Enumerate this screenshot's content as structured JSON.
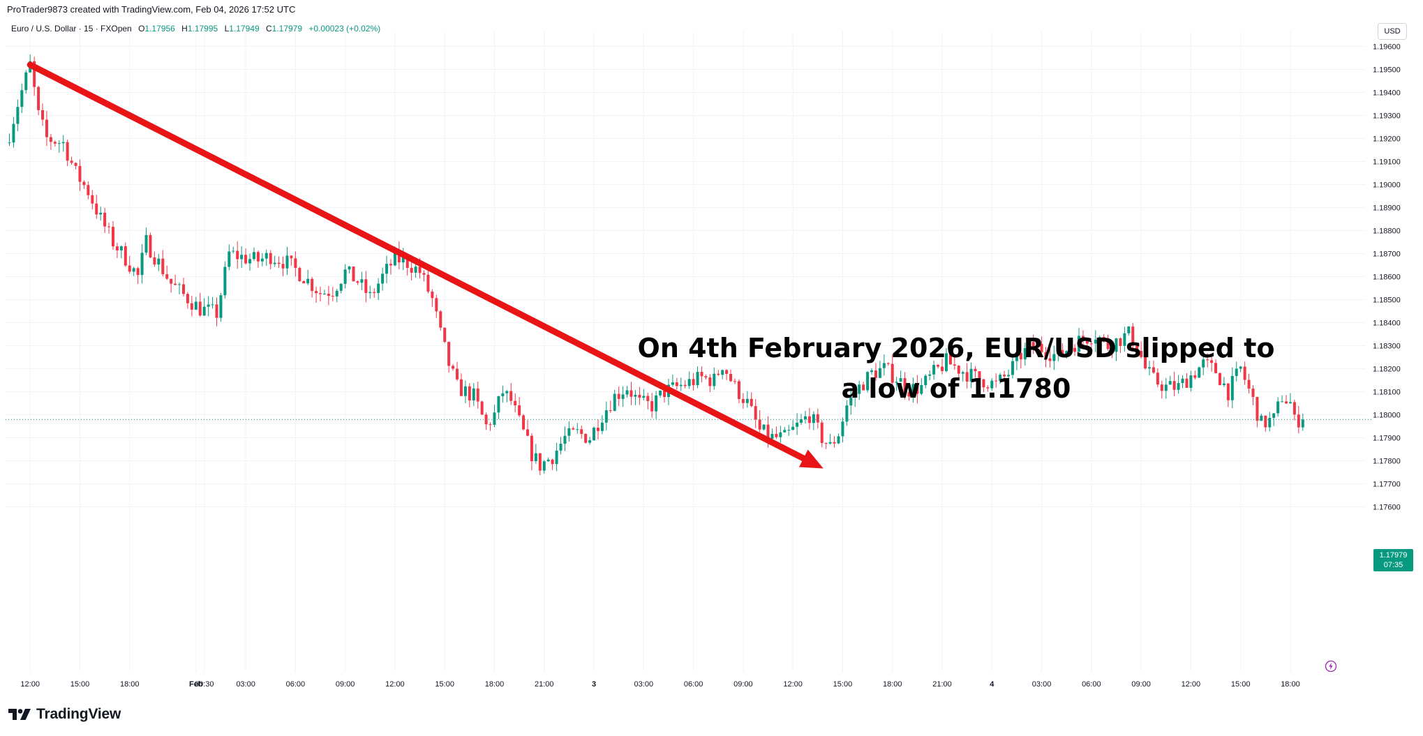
{
  "header": {
    "credit": "ProTrader9873 created with TradingView.com, Feb 04, 2026 17:52 UTC",
    "symbol": "Euro / U.S. Dollar · 15 · FXOpen",
    "ohlc": {
      "o_label": "O",
      "o": "1.17956",
      "h_label": "H",
      "h": "1.17995",
      "l_label": "L",
      "l": "1.17949",
      "c_label": "C",
      "c": "1.17979",
      "change": "+0.00023 (+0.02%)"
    },
    "currency": "USD"
  },
  "annotation": {
    "line1": "On 4th February 2026, EUR/USD slipped to",
    "line2": "a low of 1.1780"
  },
  "price_tag": {
    "price": "1.17979",
    "countdown": "07:35"
  },
  "logo": {
    "text": "TradingView"
  },
  "colors": {
    "up": "#089981",
    "down": "#f23645",
    "arrow": "#e81416",
    "grid": "#f0f3fa",
    "text": "#131722"
  },
  "chart_data": {
    "type": "candlestick",
    "title": "",
    "y_ticks": [
      1.176,
      1.177,
      1.178,
      1.179,
      1.18,
      1.181,
      1.182,
      1.183,
      1.184,
      1.185,
      1.186,
      1.187,
      1.188,
      1.189,
      1.19,
      1.191,
      1.192,
      1.193,
      1.194,
      1.195,
      1.196
    ],
    "y_tick_labels": [
      "1.17600",
      "1.17700",
      "1.17800",
      "1.17900",
      "1.18000",
      "1.18100",
      "1.18200",
      "1.18300",
      "1.18400",
      "1.18500",
      "1.18600",
      "1.18700",
      "1.18800",
      "1.18900",
      "1.19000",
      "1.19100",
      "1.19200",
      "1.19300",
      "1.19400",
      "1.19500",
      "1.19600"
    ],
    "ylim": [
      1.1755,
      1.1972
    ],
    "x_ticks": [
      {
        "label": "12:00",
        "bar": 5
      },
      {
        "label": "15:00",
        "bar": 17
      },
      {
        "label": "18:00",
        "bar": 29
      },
      {
        "label": "Feb",
        "bar": 45,
        "bold": true
      },
      {
        "label": "00:30",
        "bar": 47
      },
      {
        "label": "03:00",
        "bar": 57
      },
      {
        "label": "06:00",
        "bar": 69
      },
      {
        "label": "09:00",
        "bar": 81
      },
      {
        "label": "12:00",
        "bar": 93
      },
      {
        "label": "15:00",
        "bar": 105
      },
      {
        "label": "18:00",
        "bar": 117
      },
      {
        "label": "21:00",
        "bar": 129
      },
      {
        "label": "3",
        "bar": 141,
        "bold": true
      },
      {
        "label": "03:00",
        "bar": 153
      },
      {
        "label": "06:00",
        "bar": 165
      },
      {
        "label": "09:00",
        "bar": 177
      },
      {
        "label": "12:00",
        "bar": 189
      },
      {
        "label": "15:00",
        "bar": 201
      },
      {
        "label": "18:00",
        "bar": 213
      },
      {
        "label": "21:00",
        "bar": 225
      },
      {
        "label": "4",
        "bar": 237,
        "bold": true
      },
      {
        "label": "03:00",
        "bar": 249
      },
      {
        "label": "06:00",
        "bar": 261
      },
      {
        "label": "09:00",
        "bar": 273
      },
      {
        "label": "12:00",
        "bar": 285
      },
      {
        "label": "15:00",
        "bar": 297
      },
      {
        "label": "18:00",
        "bar": 309
      }
    ],
    "bars_total": 313,
    "last_price": 1.17979,
    "anchors": [
      {
        "bar": 0,
        "price": 1.1922
      },
      {
        "bar": 2,
        "price": 1.1935
      },
      {
        "bar": 5,
        "price": 1.1952
      },
      {
        "bar": 7,
        "price": 1.193
      },
      {
        "bar": 9,
        "price": 1.192
      },
      {
        "bar": 13,
        "price": 1.1918
      },
      {
        "bar": 16,
        "price": 1.1905
      },
      {
        "bar": 19,
        "price": 1.1897
      },
      {
        "bar": 22,
        "price": 1.1885
      },
      {
        "bar": 25,
        "price": 1.1875
      },
      {
        "bar": 28,
        "price": 1.1868
      },
      {
        "bar": 31,
        "price": 1.186
      },
      {
        "bar": 33,
        "price": 1.1875
      },
      {
        "bar": 36,
        "price": 1.1866
      },
      {
        "bar": 39,
        "price": 1.1857
      },
      {
        "bar": 42,
        "price": 1.1852
      },
      {
        "bar": 46,
        "price": 1.1846
      },
      {
        "bar": 50,
        "price": 1.1844
      },
      {
        "bar": 53,
        "price": 1.187
      },
      {
        "bar": 57,
        "price": 1.1868
      },
      {
        "bar": 60,
        "price": 1.1867
      },
      {
        "bar": 63,
        "price": 1.1869
      },
      {
        "bar": 67,
        "price": 1.1866
      },
      {
        "bar": 71,
        "price": 1.186
      },
      {
        "bar": 75,
        "price": 1.1853
      },
      {
        "bar": 78,
        "price": 1.1854
      },
      {
        "bar": 81,
        "price": 1.1862
      },
      {
        "bar": 84,
        "price": 1.1858
      },
      {
        "bar": 87,
        "price": 1.1851
      },
      {
        "bar": 90,
        "price": 1.186
      },
      {
        "bar": 93,
        "price": 1.1868
      },
      {
        "bar": 96,
        "price": 1.1866
      },
      {
        "bar": 99,
        "price": 1.1862
      },
      {
        "bar": 102,
        "price": 1.185
      },
      {
        "bar": 104,
        "price": 1.1835
      },
      {
        "bar": 106,
        "price": 1.1822
      },
      {
        "bar": 108,
        "price": 1.1812
      },
      {
        "bar": 110,
        "price": 1.181
      },
      {
        "bar": 112,
        "price": 1.1808
      },
      {
        "bar": 115,
        "price": 1.1795
      },
      {
        "bar": 117,
        "price": 1.18
      },
      {
        "bar": 119,
        "price": 1.181
      },
      {
        "bar": 121,
        "price": 1.1806
      },
      {
        "bar": 124,
        "price": 1.1792
      },
      {
        "bar": 126,
        "price": 1.1783
      },
      {
        "bar": 128,
        "price": 1.1778
      },
      {
        "bar": 131,
        "price": 1.1782
      },
      {
        "bar": 134,
        "price": 1.179
      },
      {
        "bar": 137,
        "price": 1.1792
      },
      {
        "bar": 140,
        "price": 1.179
      },
      {
        "bar": 143,
        "price": 1.18
      },
      {
        "bar": 146,
        "price": 1.1808
      },
      {
        "bar": 149,
        "price": 1.1812
      },
      {
        "bar": 152,
        "price": 1.1805
      },
      {
        "bar": 155,
        "price": 1.1804
      },
      {
        "bar": 158,
        "price": 1.181
      },
      {
        "bar": 161,
        "price": 1.1812
      },
      {
        "bar": 164,
        "price": 1.1814
      },
      {
        "bar": 167,
        "price": 1.1816
      },
      {
        "bar": 170,
        "price": 1.1815
      },
      {
        "bar": 172,
        "price": 1.1822
      },
      {
        "bar": 175,
        "price": 1.1812
      },
      {
        "bar": 178,
        "price": 1.1805
      },
      {
        "bar": 181,
        "price": 1.1793
      },
      {
        "bar": 184,
        "price": 1.179
      },
      {
        "bar": 187,
        "price": 1.179
      },
      {
        "bar": 190,
        "price": 1.1795
      },
      {
        "bar": 193,
        "price": 1.18
      },
      {
        "bar": 196,
        "price": 1.179
      },
      {
        "bar": 198,
        "price": 1.1786
      },
      {
        "bar": 200,
        "price": 1.1792
      },
      {
        "bar": 202,
        "price": 1.1804
      },
      {
        "bar": 205,
        "price": 1.1812
      },
      {
        "bar": 208,
        "price": 1.1818
      },
      {
        "bar": 211,
        "price": 1.182
      },
      {
        "bar": 214,
        "price": 1.1816
      },
      {
        "bar": 217,
        "price": 1.1811
      },
      {
        "bar": 220,
        "price": 1.1812
      },
      {
        "bar": 223,
        "price": 1.1818
      },
      {
        "bar": 226,
        "price": 1.1823
      },
      {
        "bar": 229,
        "price": 1.182
      },
      {
        "bar": 232,
        "price": 1.1817
      },
      {
        "bar": 235,
        "price": 1.1815
      },
      {
        "bar": 238,
        "price": 1.1813
      },
      {
        "bar": 241,
        "price": 1.1818
      },
      {
        "bar": 244,
        "price": 1.1826
      },
      {
        "bar": 247,
        "price": 1.183
      },
      {
        "bar": 250,
        "price": 1.1828
      },
      {
        "bar": 253,
        "price": 1.1825
      },
      {
        "bar": 256,
        "price": 1.183
      },
      {
        "bar": 259,
        "price": 1.1833
      },
      {
        "bar": 262,
        "price": 1.1835
      },
      {
        "bar": 265,
        "price": 1.183
      },
      {
        "bar": 268,
        "price": 1.1833
      },
      {
        "bar": 270,
        "price": 1.1835
      },
      {
        "bar": 272,
        "price": 1.183
      },
      {
        "bar": 274,
        "price": 1.182
      },
      {
        "bar": 276,
        "price": 1.1815
      },
      {
        "bar": 279,
        "price": 1.1812
      },
      {
        "bar": 282,
        "price": 1.1812
      },
      {
        "bar": 285,
        "price": 1.1817
      },
      {
        "bar": 288,
        "price": 1.1822
      },
      {
        "bar": 291,
        "price": 1.1819
      },
      {
        "bar": 294,
        "price": 1.181
      },
      {
        "bar": 297,
        "price": 1.182
      },
      {
        "bar": 300,
        "price": 1.1806
      },
      {
        "bar": 302,
        "price": 1.1796
      },
      {
        "bar": 305,
        "price": 1.1798
      },
      {
        "bar": 307,
        "price": 1.1808
      },
      {
        "bar": 309,
        "price": 1.1805
      },
      {
        "bar": 310,
        "price": 1.1797
      },
      {
        "bar": 311,
        "price": 1.1798
      }
    ],
    "trend_arrow": {
      "start": {
        "bar": 5,
        "price": 1.1952
      },
      "end": {
        "bar": 195,
        "price": 1.178
      }
    }
  }
}
